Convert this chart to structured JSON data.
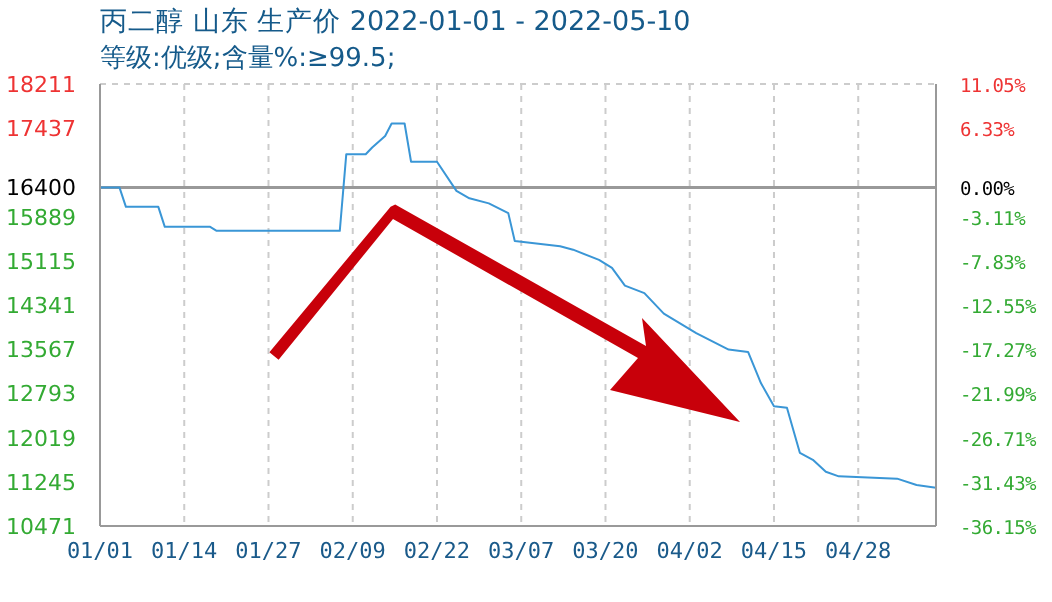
{
  "chart_data": {
    "type": "line",
    "title": "丙二醇 山东 生产价 2022-01-01 - 2022-05-10",
    "subtitle": "等级:优级;含量%:≥99.5;",
    "x": [
      "2022-01-01",
      "2022-01-04",
      "2022-01-05",
      "2022-01-10",
      "2022-01-11",
      "2022-01-18",
      "2022-01-19",
      "2022-02-07",
      "2022-02-08",
      "2022-02-11",
      "2022-02-12",
      "2022-02-14",
      "2022-02-15",
      "2022-02-17",
      "2022-02-18",
      "2022-02-22",
      "2022-02-25",
      "2022-02-27",
      "2022-03-02",
      "2022-03-05",
      "2022-03-06",
      "2022-03-13",
      "2022-03-15",
      "2022-03-19",
      "2022-03-21",
      "2022-03-23",
      "2022-03-26",
      "2022-03-29",
      "2022-04-03",
      "2022-04-08",
      "2022-04-11",
      "2022-04-13",
      "2022-04-15",
      "2022-04-17",
      "2022-04-19",
      "2022-04-21",
      "2022-04-23",
      "2022-04-25",
      "2022-05-04",
      "2022-05-07",
      "2022-05-10"
    ],
    "series": [
      {
        "color": "#3a96d6",
        "values": [
          16400,
          16400,
          16060,
          16060,
          15710,
          15710,
          15640,
          15640,
          16980,
          16980,
          17100,
          17300,
          17520,
          17520,
          16850,
          16850,
          16340,
          16210,
          16120,
          15950,
          15460,
          15370,
          15310,
          15130,
          14990,
          14680,
          14550,
          14190,
          13850,
          13560,
          13520,
          12970,
          12570,
          12540,
          11750,
          11630,
          11420,
          11340,
          11300,
          11190,
          11140
        ]
      }
    ],
    "xlim": [
      "2022-01-01",
      "2022-05-10"
    ],
    "xticks": [
      {
        "value": "2022-01-01",
        "label": "01/01"
      },
      {
        "value": "2022-01-14",
        "label": "01/14"
      },
      {
        "value": "2022-01-27",
        "label": "01/27"
      },
      {
        "value": "2022-02-09",
        "label": "02/09"
      },
      {
        "value": "2022-02-22",
        "label": "02/22"
      },
      {
        "value": "2022-03-07",
        "label": "03/07"
      },
      {
        "value": "2022-03-20",
        "label": "03/20"
      },
      {
        "value": "2022-04-02",
        "label": "04/02"
      },
      {
        "value": "2022-04-15",
        "label": "04/15"
      },
      {
        "value": "2022-04-28",
        "label": "04/28"
      }
    ],
    "ylim": [
      10471,
      18211
    ],
    "yticks": [
      10471,
      11245,
      12019,
      12793,
      13567,
      14341,
      15115,
      15889,
      16400,
      17437,
      18211
    ],
    "y2lim": [
      -36.15,
      11.05
    ],
    "y2ticks": [
      {
        "value": -36.15,
        "label": "-36.15%"
      },
      {
        "value": -31.43,
        "label": "-31.43%"
      },
      {
        "value": -26.71,
        "label": "-26.71%"
      },
      {
        "value": -21.99,
        "label": "-21.99%"
      },
      {
        "value": -17.27,
        "label": "-17.27%"
      },
      {
        "value": -12.55,
        "label": "-12.55%"
      },
      {
        "value": -7.83,
        "label": "-7.83%"
      },
      {
        "value": -3.11,
        "label": "-3.11%"
      },
      {
        "value": 0,
        "label": "0.00%"
      },
      {
        "value": 6.33,
        "label": "6.33%"
      },
      {
        "value": 11.05,
        "label": "11.05%"
      }
    ],
    "ref_lines": [
      {
        "axis": "y",
        "value": 16400,
        "color": "#999999"
      }
    ],
    "grid": true,
    "marker": "none",
    "line_style": "solid"
  }
}
